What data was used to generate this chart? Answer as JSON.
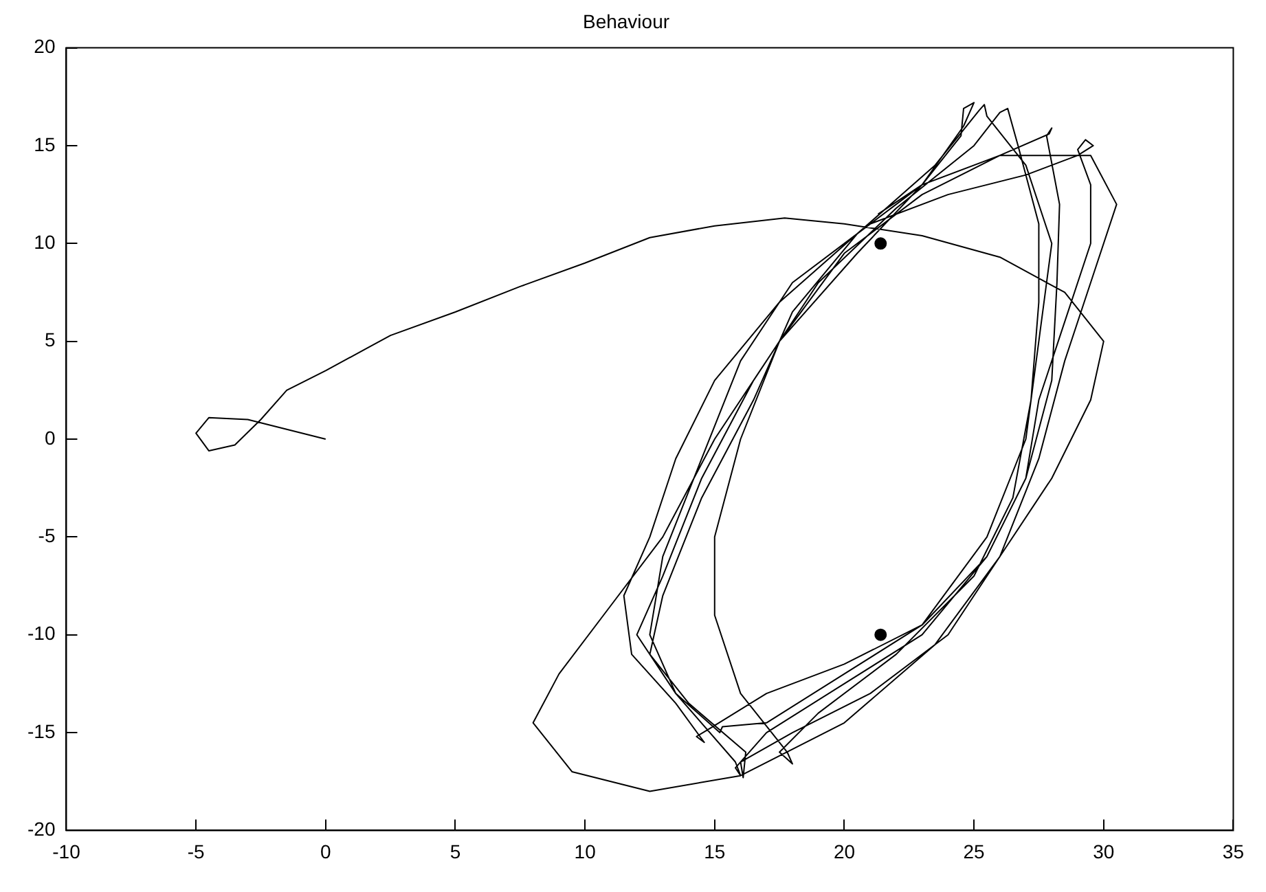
{
  "chart_data": {
    "type": "line",
    "title": "Behaviour",
    "xlim": [
      -10,
      35
    ],
    "ylim": [
      -20,
      20
    ],
    "xticks": [
      -10,
      -5,
      0,
      5,
      10,
      15,
      20,
      25,
      30,
      35
    ],
    "yticks": [
      -20,
      -15,
      -10,
      -5,
      0,
      5,
      10,
      15,
      20
    ],
    "grid": false,
    "legend": false,
    "marker": "none",
    "series": [
      {
        "color": "#000000",
        "x": [
          0,
          -1.5,
          -3,
          -4.5,
          -5,
          -4.5,
          -3.5,
          -2.5,
          -1.5,
          0,
          2.5,
          5,
          7.5,
          10,
          12.5,
          15,
          17.7,
          20,
          23,
          26,
          28.5,
          30,
          29.5,
          28,
          26,
          23.5,
          20,
          16,
          12.5,
          9.5,
          8,
          9,
          11,
          13,
          15,
          17.5,
          20.5,
          23,
          24.6,
          25,
          24.6,
          24.5,
          23,
          20.5,
          17.5,
          15,
          13.5,
          12.5,
          11.5,
          11.8,
          13.5,
          14.6,
          14.3,
          14.8,
          17,
          20,
          23,
          25.5,
          27,
          27.5,
          28.5,
          29.5,
          29.5,
          29,
          29.3,
          29.6,
          29,
          27,
          24,
          21,
          18,
          16,
          14.5,
          13,
          12.5,
          13.5,
          15.8,
          16,
          15.8,
          17,
          20,
          23,
          25.5,
          27,
          28,
          28.2,
          28.3,
          27.8,
          28,
          27.9,
          26,
          23,
          20,
          17.5,
          16,
          15,
          15,
          16,
          17.8,
          18,
          17.5,
          19,
          22,
          25,
          26.5,
          27.2,
          27.5,
          27.5,
          26.7,
          26.3,
          26,
          25,
          22,
          19,
          16.5,
          14.5,
          13,
          12,
          13.5,
          15.2,
          15.3,
          17,
          20,
          23,
          25.5,
          27,
          27.5,
          28,
          27,
          25.5,
          25.4,
          25.2,
          23.5,
          20.5,
          18,
          16.5,
          14.5,
          13,
          12.5,
          14,
          16.2,
          16.1,
          16,
          18,
          21,
          24,
          26,
          27.5,
          28.5,
          29.5,
          30.5,
          29.5,
          26,
          23,
          21.3
        ],
        "values": [
          0,
          0.5,
          1,
          1.1,
          0.3,
          -0.6,
          -0.3,
          1,
          2.5,
          3.5,
          5.3,
          6.5,
          7.8,
          9,
          10.3,
          10.9,
          11.3,
          11,
          10.4,
          9.3,
          7.5,
          5,
          2,
          -2,
          -6,
          -10.5,
          -14.5,
          -17.2,
          -18,
          -17,
          -14.5,
          -12,
          -8.5,
          -5,
          0,
          5,
          9.5,
          13,
          16,
          17.2,
          16.9,
          15.5,
          13,
          10.5,
          7,
          3,
          -1,
          -5,
          -8,
          -11,
          -13.5,
          -15.5,
          -15.2,
          -14.8,
          -13,
          -11.5,
          -9.5,
          -6,
          -2,
          2,
          6,
          10,
          13,
          14.8,
          15.3,
          15,
          14.5,
          13.5,
          12.5,
          11,
          8,
          4,
          -1,
          -6,
          -10,
          -13,
          -16.5,
          -17.2,
          -16.8,
          -15,
          -12.5,
          -10,
          -6,
          -2,
          3,
          8,
          12,
          15.5,
          15.9,
          15.6,
          14.5,
          12.5,
          9.5,
          5,
          0,
          -5,
          -9,
          -13,
          -16,
          -16.6,
          -16,
          -14,
          -11,
          -7,
          -3,
          2,
          7,
          11,
          15,
          16.9,
          16.7,
          15,
          11.8,
          8,
          3,
          -2,
          -7,
          -10,
          -13,
          -15,
          -14.7,
          -14.5,
          -12,
          -9.5,
          -5,
          0,
          5,
          10,
          14,
          16.5,
          17.1,
          16.8,
          14,
          10.5,
          6.5,
          2,
          -3,
          -8,
          -11,
          -13.5,
          -16,
          -17.3,
          -16.5,
          -15,
          -13,
          -10,
          -6,
          -1,
          4,
          8,
          12,
          14.5,
          14.5,
          13,
          11.5
        ]
      },
      {
        "type": "scatter",
        "color": "#000000",
        "marker": "circle",
        "x": [
          21.4,
          21.4
        ],
        "values": [
          10,
          -10
        ]
      }
    ]
  }
}
